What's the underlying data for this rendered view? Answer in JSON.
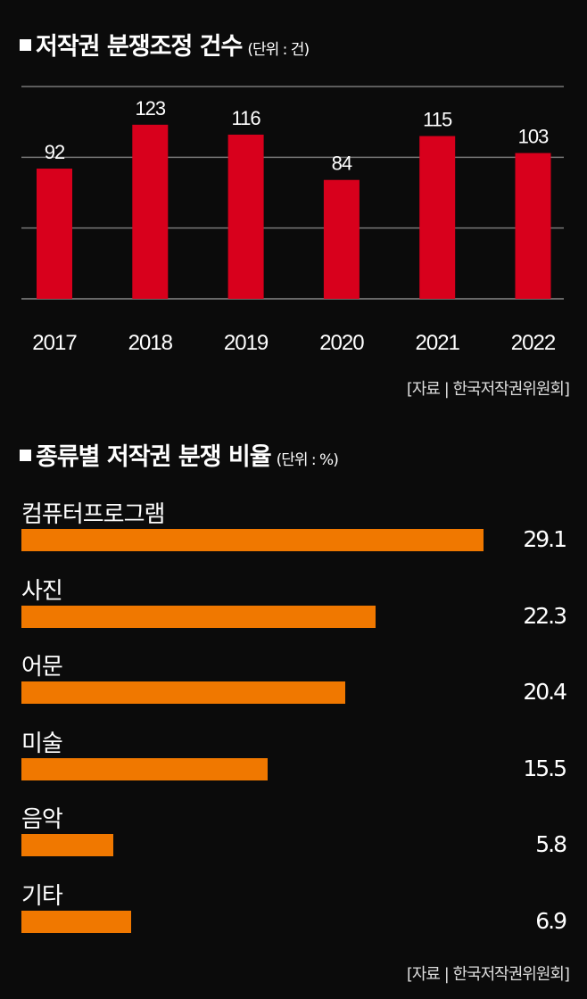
{
  "chart_data": [
    {
      "type": "bar",
      "title": "저작권 분쟁조정 건수",
      "unit": "(단위 : 건)",
      "categories": [
        "2017",
        "2018",
        "2019",
        "2020",
        "2021",
        "2022"
      ],
      "values": [
        92,
        123,
        116,
        84,
        115,
        103
      ],
      "ylim": [
        0,
        150
      ],
      "grid": [
        50,
        100,
        150
      ],
      "color": "#d8001c",
      "source": "[자료 | 한국저작권위원회]"
    },
    {
      "type": "bar",
      "orientation": "horizontal",
      "title": "종류별 저작권 분쟁 비율",
      "unit": "(단위 : %)",
      "categories": [
        "컴퓨터프로그램",
        "사진",
        "어문",
        "미술",
        "음악",
        "기타"
      ],
      "values": [
        29.1,
        22.3,
        20.4,
        15.5,
        5.8,
        6.9
      ],
      "xlim": [
        0,
        29.1
      ],
      "color": "#f07800",
      "source": "[자료 | 한국저작권위원회]"
    }
  ]
}
